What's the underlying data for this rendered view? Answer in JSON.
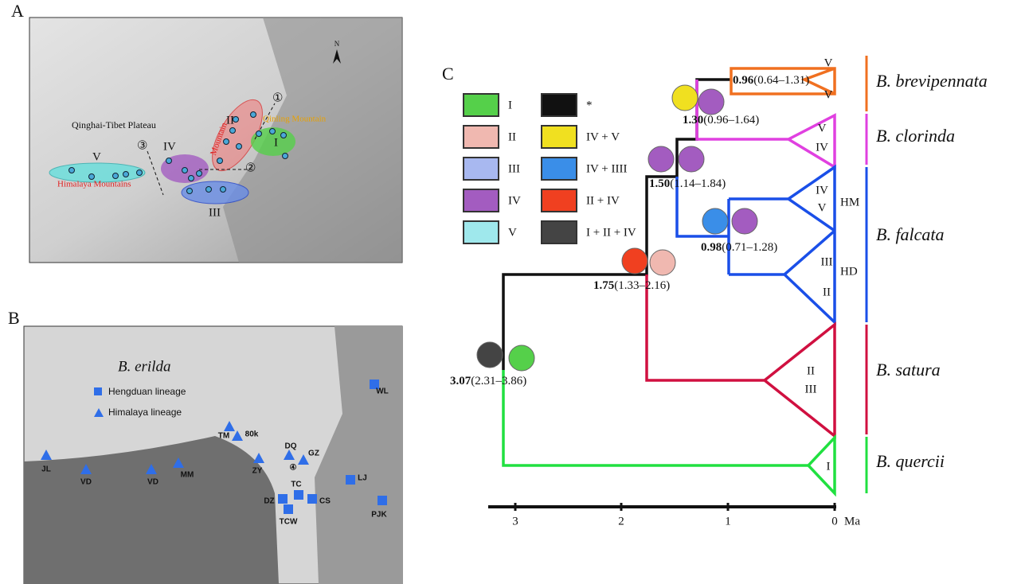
{
  "panels": {
    "a": {
      "label": "A",
      "plateau": "Qinghai-Tibet Plateau",
      "himalaya": "Himalaya Mountains",
      "qinling": "Qinling Mountain",
      "hengduan": "Mountain",
      "north": "N",
      "lineages": [
        "I",
        "II",
        "III",
        "IV",
        "V"
      ],
      "barriers": [
        "①",
        "②",
        "③"
      ]
    },
    "b": {
      "label": "B",
      "species": "B. erilda",
      "legend": [
        "Hengduan lineage",
        "Himalaya lineage"
      ],
      "sites": [
        "WL",
        "JL",
        "VD",
        "VD",
        "MM",
        "TM",
        "80k",
        "ZY",
        "DQ",
        "GZ",
        "④",
        "TC",
        "DZ",
        "CS",
        "TCW",
        "LJ",
        "PJK"
      ]
    },
    "c": {
      "label": "C",
      "legend": [
        "I",
        "II",
        "III",
        "IV",
        "V",
        "*",
        "IV + V",
        "IV + IIII",
        "II + IV",
        "I + II + IV"
      ],
      "nodes": [
        {
          "age": "0.96",
          "range": "(0.64–1.31)"
        },
        {
          "age": "1.30",
          "range": "(0.96–1.64)"
        },
        {
          "age": "1.50",
          "range": "(1.14–1.84)"
        },
        {
          "age": "0.98",
          "range": "(0.71–1.28)"
        },
        {
          "age": "1.75",
          "range": "(1.33–2.16)"
        },
        {
          "age": "3.07",
          "range": "(2.31–3.86)"
        }
      ],
      "clades": [
        "B. brevipennata",
        "B. clorinda",
        "B. falcata",
        "B. satura",
        "B. quercii"
      ],
      "triangles": [
        [
          "V",
          "V"
        ],
        [
          "V",
          "IV"
        ],
        [
          "IV",
          "V"
        ],
        [
          "III",
          "II"
        ],
        [
          "II",
          "III"
        ],
        [
          "I"
        ]
      ],
      "groups": [
        "HM",
        "HD"
      ],
      "axis": {
        "ticks": [
          "3",
          "2",
          "1",
          "0"
        ],
        "unit": "Ma"
      }
    }
  }
}
